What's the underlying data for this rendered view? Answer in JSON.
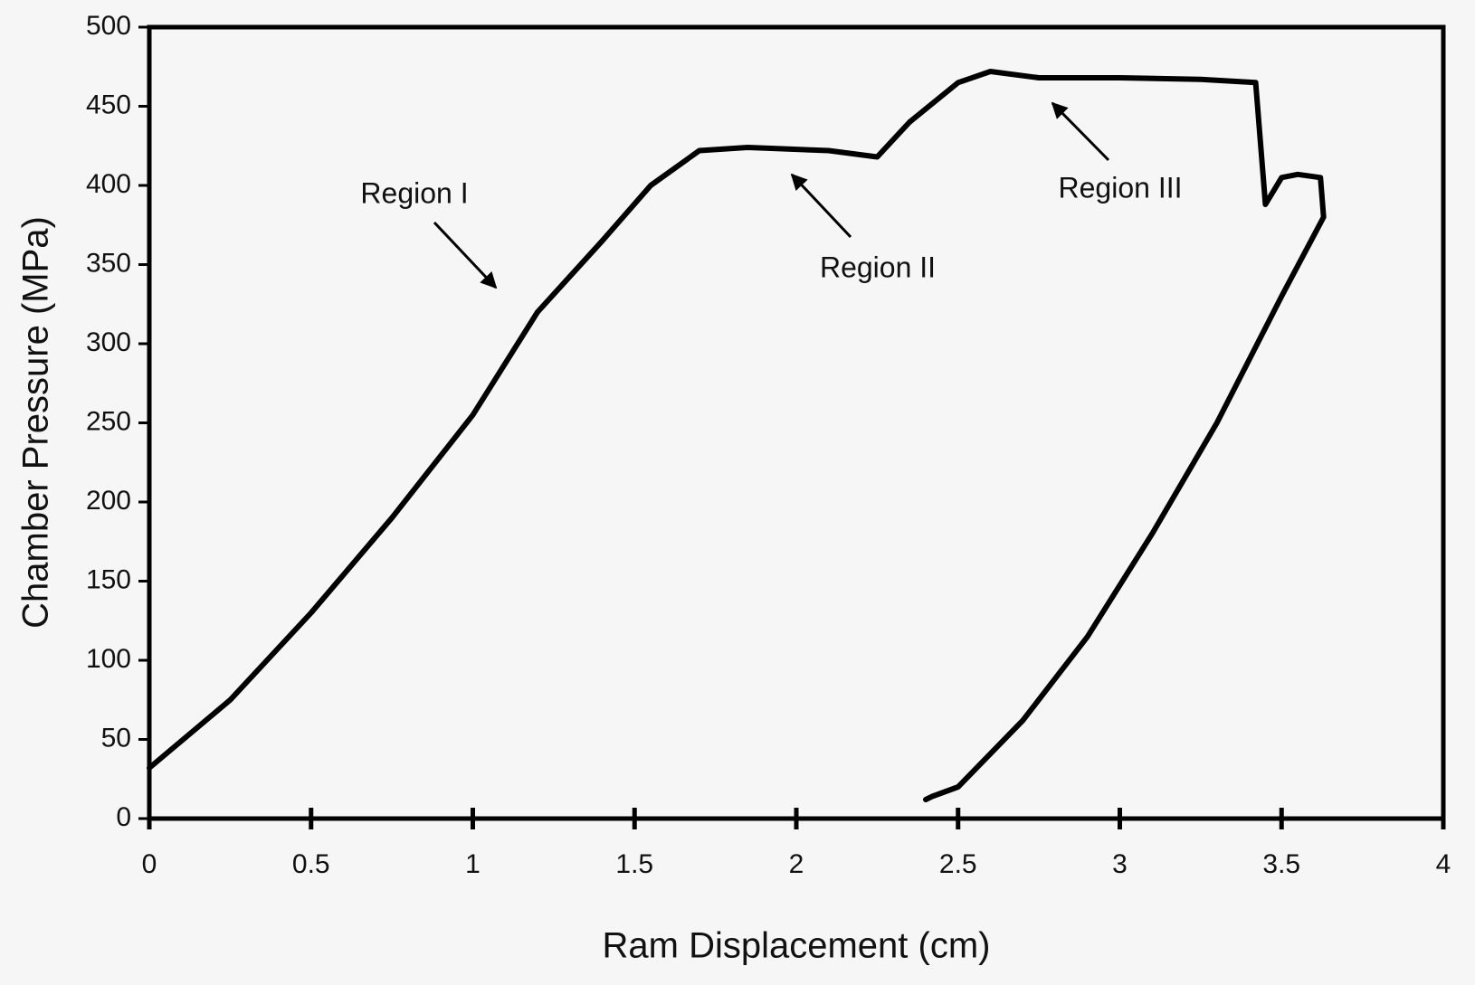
{
  "chart_data": {
    "type": "line",
    "x_label": "Ram Displacement (cm)",
    "y_label": "Chamber Pressure (MPa)",
    "x": [
      0,
      0.25,
      0.5,
      0.75,
      1.0,
      1.2,
      1.4,
      1.55,
      1.7,
      1.85,
      2.1,
      2.25,
      2.35,
      2.5,
      2.6,
      2.75,
      3.0,
      3.25,
      3.42,
      3.45,
      3.5,
      3.55,
      3.62,
      3.63,
      3.5,
      3.3,
      3.1,
      2.9,
      2.7,
      2.5,
      2.42,
      2.4
    ],
    "values": [
      32,
      75,
      130,
      190,
      255,
      320,
      365,
      400,
      422,
      424,
      422,
      418,
      440,
      465,
      472,
      468,
      468,
      467,
      465,
      388,
      405,
      407,
      405,
      380,
      330,
      250,
      180,
      115,
      62,
      20,
      14,
      12
    ],
    "color": "#000000",
    "xlim": [
      0,
      4
    ],
    "xticks": [
      0,
      0.5,
      1,
      1.5,
      2,
      2.5,
      3,
      3.5,
      4
    ],
    "ylim": [
      0,
      500
    ],
    "yticks": [
      0,
      50,
      100,
      150,
      200,
      250,
      300,
      350,
      400,
      450,
      500
    ],
    "annotations": [
      "Region I",
      "Region II",
      "Region III"
    ]
  }
}
